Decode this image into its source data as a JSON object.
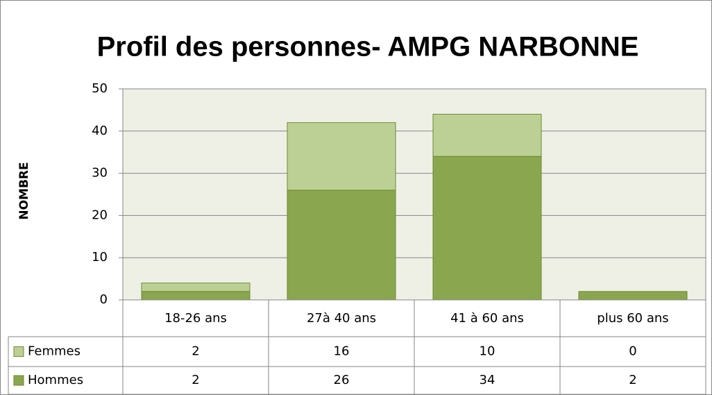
{
  "chart_data": {
    "type": "stacked_bar",
    "title": "Profil des personnes- AMPG NARBONNE",
    "ylabel": "NOMBRE",
    "categories": [
      "18-26 ans",
      "27à 40 ans",
      "41 à 60 ans",
      "plus 60 ans"
    ],
    "series": [
      {
        "name": "Femmes",
        "color": "#bcd096",
        "values": [
          2,
          16,
          10,
          0
        ]
      },
      {
        "name": "Hommes",
        "color": "#8aa64e",
        "values": [
          2,
          26,
          34,
          2
        ]
      }
    ],
    "ylim": [
      0,
      50
    ],
    "yticks": [
      0,
      10,
      20,
      30,
      40,
      50
    ],
    "grid": true,
    "stack_from": "last"
  }
}
